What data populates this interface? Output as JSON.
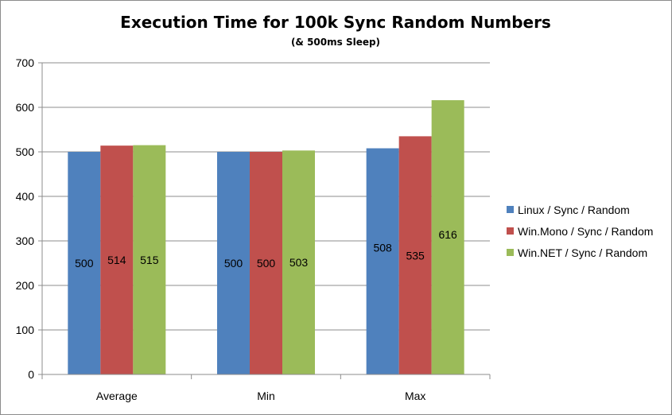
{
  "chart_data": {
    "type": "bar",
    "title": "Execution Time for 100k Sync Random Numbers",
    "subtitle": "(& 500ms Sleep)",
    "categories": [
      "Average",
      "Min",
      "Max"
    ],
    "series": [
      {
        "name": "Linux / Sync / Random",
        "color": "#4f81bd",
        "values": [
          500,
          500,
          508
        ]
      },
      {
        "name": "Win.Mono / Sync / Random",
        "color": "#c0504d",
        "values": [
          514,
          500,
          535
        ]
      },
      {
        "name": "Win.NET / Sync / Random",
        "color": "#9bbb59",
        "values": [
          515,
          503,
          616
        ]
      }
    ],
    "ylim": [
      0,
      700
    ],
    "yticks": [
      "0",
      "100",
      "200",
      "300",
      "400",
      "500",
      "600",
      "700"
    ],
    "grid": true,
    "legend": "right",
    "data_labels": true
  }
}
